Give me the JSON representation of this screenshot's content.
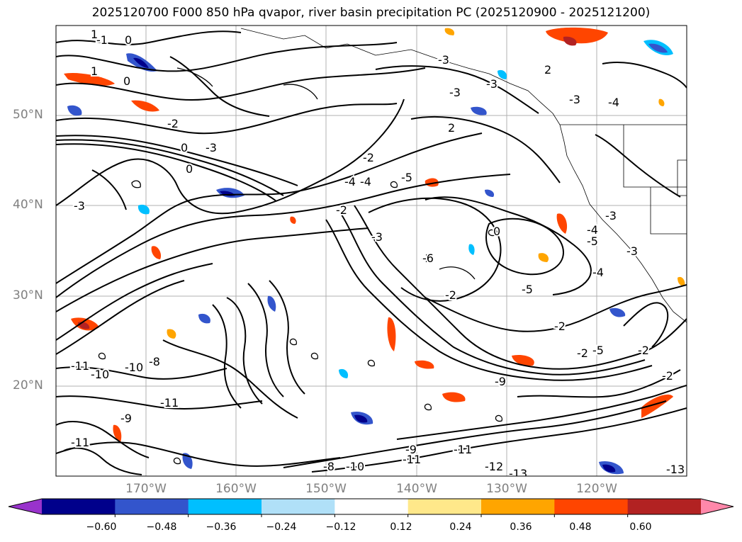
{
  "title": "2025120700 F000 850 hPa qvapor, river basin precipitation PC (2025120900 - 2025121200)",
  "map": {
    "lat_labels": [
      "50°N",
      "40°N",
      "30°N",
      "20°N"
    ],
    "lon_labels": [
      "170°W",
      "160°W",
      "150°W",
      "140°W",
      "130°W",
      "120°W"
    ],
    "contour_labels": [
      "1",
      "0",
      "1",
      "0",
      "-1",
      "0",
      "-2",
      "-3",
      "-3",
      "-3",
      "-3",
      "2",
      "-3",
      "-4",
      "2",
      "0",
      "-2",
      "-4",
      "-2",
      "-4",
      "-2",
      "-5",
      "-3",
      "-4",
      "-5",
      "-3",
      "-4",
      "-3",
      "-6",
      "-2",
      "-5",
      "-2",
      "-5",
      "-2",
      "-2",
      "-2",
      "0",
      "-3",
      "-11",
      "-10",
      "-11",
      "-10",
      "-8",
      "-11",
      "-9",
      "-9",
      "-11",
      "-12",
      "-13",
      "-13",
      "-9",
      "-8",
      "-10",
      "-11"
    ]
  },
  "colorbar": {
    "colors": [
      "#9933cc",
      "#00008b",
      "#3355cc",
      "#00bfff",
      "#b0e0f8",
      "#ffffff",
      "#ffe88a",
      "#ffa500",
      "#ff4500",
      "#b22222",
      "#ff88aa"
    ],
    "tick_labels": [
      "−0.60",
      "−0.48",
      "−0.36",
      "−0.24",
      "−0.12",
      "0.12",
      "0.24",
      "0.36",
      "0.48",
      "0.60"
    ]
  }
}
